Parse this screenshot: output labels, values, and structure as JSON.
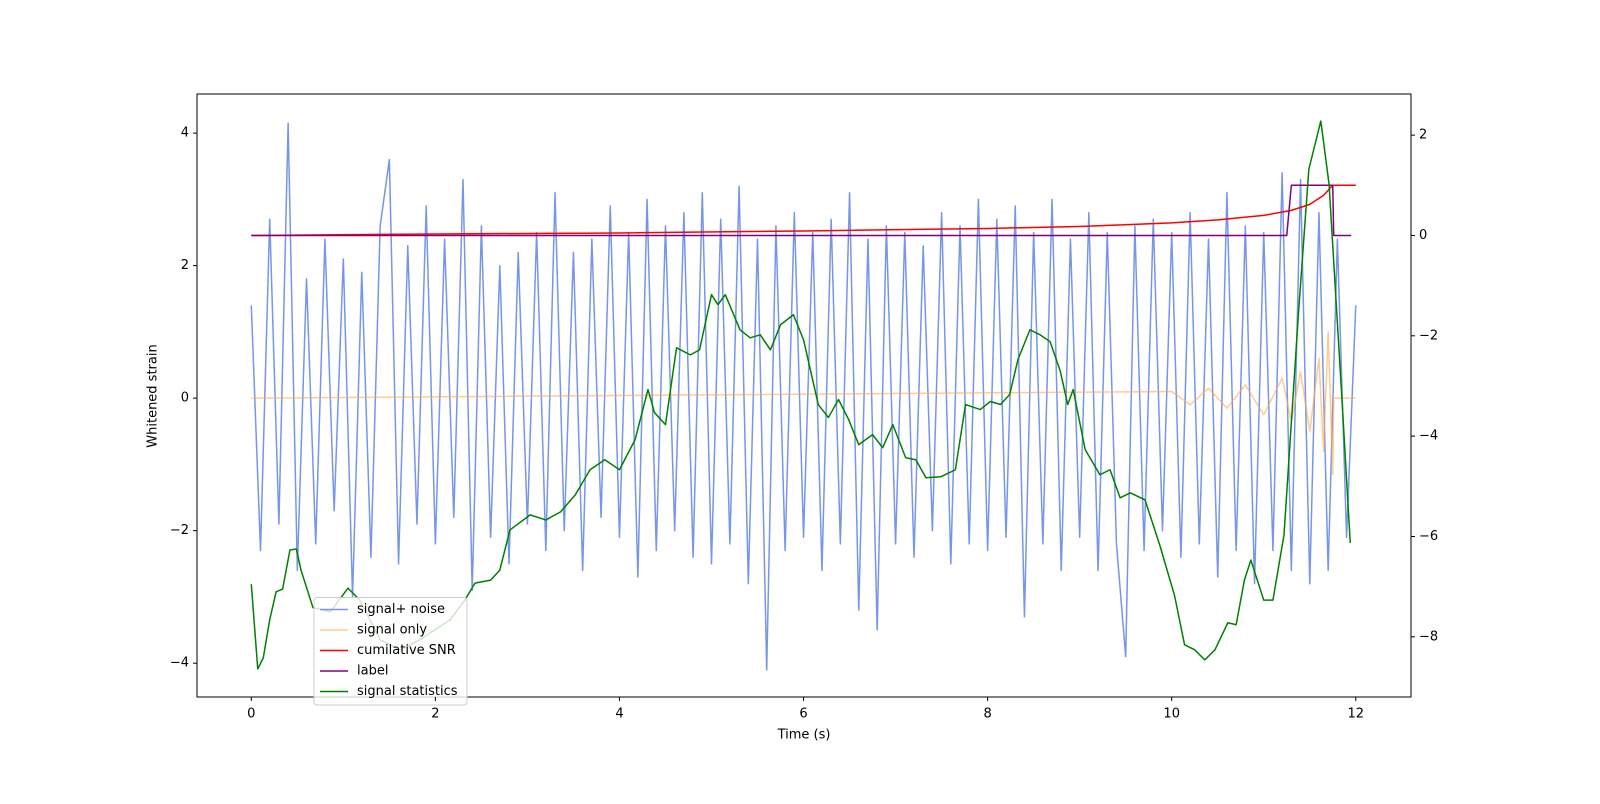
{
  "chart_data": {
    "type": "line",
    "xlabel": "Time (s)",
    "ylabel": "Whitened strain",
    "xlim": [
      -0.59,
      12.6
    ],
    "ylim": [
      -4.51,
      4.59
    ],
    "y2lim": [
      -9.2,
      2.82
    ],
    "xticks": [
      0,
      2,
      4,
      6,
      8,
      10,
      12
    ],
    "yticks": [
      {
        "value": -4,
        "label": "−4"
      },
      {
        "value": -2,
        "label": "−2"
      },
      0,
      2,
      4
    ],
    "y2ticks": [
      {
        "value": -8,
        "label": "−8"
      },
      {
        "value": -6,
        "label": "−6"
      },
      {
        "value": -4,
        "label": "−4"
      },
      {
        "value": -2,
        "label": "−2"
      },
      0,
      2
    ],
    "legend": "lower left",
    "series": [
      {
        "name": "signal+ noise",
        "color": "#7090e6",
        "axis": "y",
        "x": [
          0,
          0.1,
          0.2,
          0.3,
          0.4,
          0.5,
          0.6,
          0.7,
          0.8,
          0.9,
          1,
          1.1,
          1.2,
          1.3,
          1.4,
          1.5,
          1.6,
          1.7,
          1.8,
          1.9,
          2,
          2.1,
          2.2,
          2.3,
          2.4,
          2.5,
          2.6,
          2.7,
          2.8,
          2.9,
          3,
          3.1,
          3.2,
          3.3,
          3.4,
          3.5,
          3.6,
          3.7,
          3.8,
          3.9,
          4,
          4.1,
          4.2,
          4.3,
          4.4,
          4.5,
          4.6,
          4.7,
          4.8,
          4.9,
          5,
          5.1,
          5.2,
          5.3,
          5.4,
          5.5,
          5.6,
          5.7,
          5.8,
          5.9,
          6,
          6.1,
          6.2,
          6.3,
          6.4,
          6.5,
          6.6,
          6.7,
          6.8,
          6.9,
          7,
          7.1,
          7.2,
          7.3,
          7.4,
          7.5,
          7.6,
          7.7,
          7.8,
          7.9,
          8,
          8.1,
          8.2,
          8.3,
          8.4,
          8.5,
          8.6,
          8.7,
          8.8,
          8.9,
          9,
          9.1,
          9.2,
          9.3,
          9.4,
          9.5,
          9.6,
          9.7,
          9.8,
          9.9,
          10,
          10.1,
          10.2,
          10.3,
          10.4,
          10.5,
          10.6,
          10.7,
          10.8,
          10.9,
          11,
          11.1,
          11.2,
          11.3,
          11.4,
          11.5,
          11.6,
          11.7,
          11.8,
          11.9,
          12
        ],
        "values": [
          1.4,
          -2.3,
          2.7,
          -1.9,
          4.15,
          -2.6,
          1.8,
          -2.2,
          2.4,
          -1.7,
          2.1,
          -3.0,
          1.9,
          -2.4,
          2.6,
          3.6,
          -2.5,
          2.3,
          -1.9,
          2.9,
          -2.2,
          2.4,
          -1.8,
          3.3,
          -2.9,
          2.6,
          -2.1,
          2.0,
          -2.5,
          2.2,
          -1.9,
          2.5,
          -2.3,
          3.1,
          -2.0,
          2.2,
          -2.6,
          2.4,
          -1.8,
          2.9,
          -2.1,
          2.5,
          -2.7,
          3.0,
          -2.3,
          2.6,
          -2.0,
          2.8,
          -2.4,
          3.1,
          -2.5,
          2.7,
          -2.2,
          3.2,
          -2.8,
          2.4,
          -4.1,
          2.6,
          -2.3,
          2.8,
          -2.1,
          2.5,
          -2.6,
          2.7,
          -2.2,
          3.1,
          -3.2,
          2.4,
          -3.5,
          2.6,
          -2.2,
          2.5,
          -2.4,
          2.3,
          -2.0,
          2.8,
          -2.5,
          2.6,
          -2.2,
          3.0,
          -2.3,
          2.7,
          -2.1,
          2.9,
          -3.3,
          2.5,
          -2.2,
          3.0,
          -2.6,
          2.4,
          -2.1,
          2.8,
          -2.6,
          2.5,
          -2.2,
          -3.9,
          2.6,
          -2.3,
          2.7,
          -2.0,
          2.5,
          -2.4,
          2.8,
          -2.2,
          2.4,
          -2.7,
          3.1,
          -2.3,
          2.6,
          -2.8,
          2.5,
          -2.3,
          3.4,
          -2.6,
          3.3,
          -2.8,
          2.8,
          -2.6,
          2.4,
          -2.1,
          1.4
        ]
      },
      {
        "name": "signal only",
        "color": "#ffa94d",
        "axis": "y",
        "x": [
          0,
          10,
          10.2,
          10.4,
          10.6,
          10.8,
          11,
          11.2,
          11.3,
          11.4,
          11.5,
          11.6,
          11.65,
          11.7,
          11.75,
          11.76,
          12
        ],
        "values": [
          0,
          0.1,
          -0.1,
          0.15,
          -0.15,
          0.2,
          -0.25,
          0.3,
          -0.35,
          0.4,
          -0.5,
          0.6,
          -0.8,
          1.0,
          -1.15,
          0,
          0
        ]
      },
      {
        "name": "cumilative SNR",
        "color": "#ff0000",
        "axis": "y2",
        "x": [
          0,
          2,
          4,
          6,
          8,
          9,
          10,
          10.5,
          11,
          11.3,
          11.5,
          11.65,
          11.75,
          12
        ],
        "values": [
          0,
          0.03,
          0.05,
          0.09,
          0.14,
          0.18,
          0.25,
          0.31,
          0.4,
          0.5,
          0.62,
          0.8,
          1.0,
          1.0
        ]
      },
      {
        "name": "label",
        "color": "#800080",
        "axis": "y2",
        "x": [
          0,
          11.25,
          11.3,
          11.75,
          11.76,
          11.95
        ],
        "values": [
          0,
          0,
          1,
          1,
          0,
          0
        ]
      },
      {
        "name": "signal statistics",
        "color": "#008000",
        "axis": "y2",
        "x": [
          0,
          0.07,
          0.13,
          0.2,
          0.27,
          0.34,
          0.42,
          0.49,
          0.54,
          0.67,
          0.86,
          1.05,
          1.18,
          1.4,
          1.62,
          1.83,
          2.16,
          2.32,
          2.43,
          2.6,
          2.7,
          2.81,
          3.03,
          3.2,
          3.36,
          3.52,
          3.68,
          3.84,
          4.0,
          4.17,
          4.31,
          4.38,
          4.5,
          4.62,
          4.77,
          4.87,
          5.0,
          5.07,
          5.15,
          5.31,
          5.42,
          5.53,
          5.64,
          5.75,
          5.89,
          6.0,
          6.16,
          6.27,
          6.38,
          6.49,
          6.6,
          6.75,
          6.86,
          6.97,
          7.11,
          7.22,
          7.33,
          7.49,
          7.65,
          7.76,
          7.92,
          8.03,
          8.14,
          8.24,
          8.33,
          8.46,
          8.57,
          8.68,
          8.79,
          8.87,
          8.93,
          9.06,
          9.22,
          9.33,
          9.44,
          9.55,
          9.71,
          9.87,
          10.03,
          10.14,
          10.25,
          10.36,
          10.47,
          10.61,
          10.7,
          10.79,
          10.86,
          10.93,
          11.0,
          11.1,
          11.22,
          11.38,
          11.49,
          11.62,
          11.71,
          11.85,
          11.94
        ],
        "values": [
          -6.95,
          -8.64,
          -8.42,
          -7.66,
          -7.1,
          -7.05,
          -6.27,
          -6.25,
          -6.67,
          -7.42,
          -7.5,
          -7.03,
          -7.27,
          -8.06,
          -8.26,
          -8.06,
          -7.66,
          -7.27,
          -6.93,
          -6.87,
          -6.67,
          -5.87,
          -5.57,
          -5.67,
          -5.51,
          -5.17,
          -4.67,
          -4.47,
          -4.67,
          -4.07,
          -3.07,
          -3.53,
          -3.77,
          -2.24,
          -2.38,
          -2.28,
          -1.18,
          -1.38,
          -1.18,
          -1.88,
          -2.04,
          -1.98,
          -2.28,
          -1.78,
          -1.58,
          -2.08,
          -3.37,
          -3.63,
          -3.27,
          -3.67,
          -4.17,
          -3.97,
          -4.23,
          -3.77,
          -4.43,
          -4.47,
          -4.83,
          -4.81,
          -4.67,
          -3.37,
          -3.47,
          -3.31,
          -3.37,
          -3.17,
          -2.47,
          -1.88,
          -1.98,
          -2.12,
          -2.71,
          -3.37,
          -3.07,
          -4.27,
          -4.77,
          -4.67,
          -5.23,
          -5.13,
          -5.27,
          -6.17,
          -7.17,
          -8.16,
          -8.26,
          -8.46,
          -8.26,
          -7.72,
          -7.76,
          -6.87,
          -6.47,
          -6.87,
          -7.27,
          -7.27,
          -5.97,
          -1.48,
          1.32,
          2.28,
          1.02,
          -3.27,
          -6.13
        ]
      }
    ]
  }
}
